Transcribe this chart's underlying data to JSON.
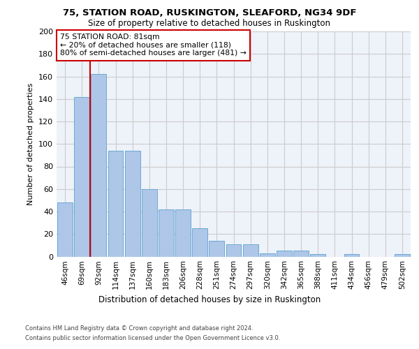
{
  "title": "75, STATION ROAD, RUSKINGTON, SLEAFORD, NG34 9DF",
  "subtitle": "Size of property relative to detached houses in Ruskington",
  "xlabel": "Distribution of detached houses by size in Ruskington",
  "ylabel": "Number of detached properties",
  "categories": [
    "46sqm",
    "69sqm",
    "92sqm",
    "114sqm",
    "137sqm",
    "160sqm",
    "183sqm",
    "206sqm",
    "228sqm",
    "251sqm",
    "274sqm",
    "297sqm",
    "320sqm",
    "342sqm",
    "365sqm",
    "388sqm",
    "411sqm",
    "434sqm",
    "456sqm",
    "479sqm",
    "502sqm"
  ],
  "values": [
    48,
    142,
    162,
    94,
    94,
    60,
    42,
    42,
    25,
    14,
    11,
    11,
    3,
    5,
    5,
    2,
    0,
    2,
    0,
    0,
    2
  ],
  "bar_color": "#aec6e8",
  "bar_edge_color": "#6aaad4",
  "vline_color": "#cc0000",
  "annotation_text": "75 STATION ROAD: 81sqm\n← 20% of detached houses are smaller (118)\n80% of semi-detached houses are larger (481) →",
  "annotation_box_color": "#ffffff",
  "annotation_box_edge_color": "#cc0000",
  "ylim": [
    0,
    200
  ],
  "yticks": [
    0,
    20,
    40,
    60,
    80,
    100,
    120,
    140,
    160,
    180,
    200
  ],
  "grid_color": "#cccccc",
  "background_color": "#eef2f9",
  "footer_line1": "Contains HM Land Registry data © Crown copyright and database right 2024.",
  "footer_line2": "Contains public sector information licensed under the Open Government Licence v3.0."
}
